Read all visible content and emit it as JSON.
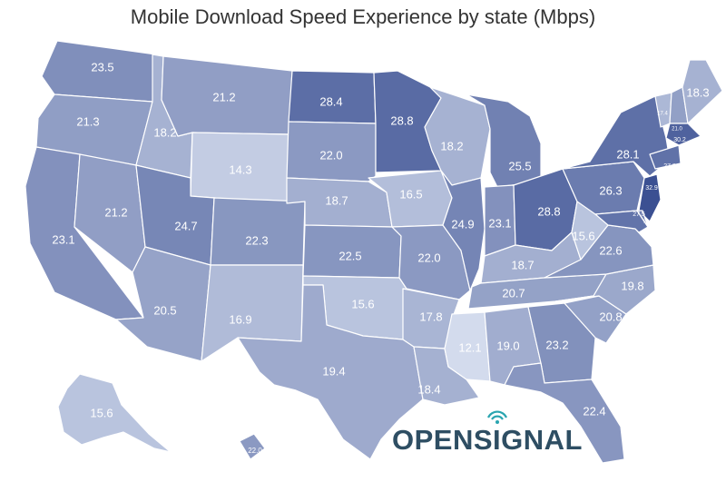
{
  "title": "Mobile Download Speed Experience by state (Mbps)",
  "logo": {
    "before": "OPENS",
    "i_letter": "I",
    "after": "GNAL"
  },
  "colors": {
    "scale_low": "#d3dbed",
    "scale_high": "#3b5092",
    "outline": "#ffffff",
    "label": "#ffffff",
    "logo": "#2e4e63",
    "logo_accent": "#2aa5b0"
  },
  "units": "Mbps",
  "states": [
    {
      "id": "WA",
      "value": "23.5"
    },
    {
      "id": "OR",
      "value": "21.3"
    },
    {
      "id": "CA",
      "value": "23.1"
    },
    {
      "id": "NV",
      "value": "21.2"
    },
    {
      "id": "ID",
      "value": "18.2"
    },
    {
      "id": "MT",
      "value": "21.2"
    },
    {
      "id": "WY",
      "value": "14.3"
    },
    {
      "id": "UT",
      "value": "24.7"
    },
    {
      "id": "AZ",
      "value": "20.5"
    },
    {
      "id": "CO",
      "value": "22.3"
    },
    {
      "id": "NM",
      "value": "16.9"
    },
    {
      "id": "ND",
      "value": "28.4"
    },
    {
      "id": "SD",
      "value": "22.0"
    },
    {
      "id": "NE",
      "value": "18.7"
    },
    {
      "id": "KS",
      "value": "22.5"
    },
    {
      "id": "OK",
      "value": "15.6"
    },
    {
      "id": "TX",
      "value": "19.4"
    },
    {
      "id": "MN",
      "value": "28.8"
    },
    {
      "id": "IA",
      "value": "16.5"
    },
    {
      "id": "MO",
      "value": "22.0"
    },
    {
      "id": "AR",
      "value": "17.8"
    },
    {
      "id": "LA",
      "value": "18.4"
    },
    {
      "id": "WI",
      "value": "18.2"
    },
    {
      "id": "IL",
      "value": "24.9"
    },
    {
      "id": "MI",
      "value": "25.5"
    },
    {
      "id": "IN",
      "value": "23.1"
    },
    {
      "id": "OH",
      "value": "28.8"
    },
    {
      "id": "KY",
      "value": "18.7"
    },
    {
      "id": "TN",
      "value": "20.7"
    },
    {
      "id": "MS",
      "value": "12.1"
    },
    {
      "id": "AL",
      "value": "19.0"
    },
    {
      "id": "GA",
      "value": "23.2"
    },
    {
      "id": "FL",
      "value": "22.4"
    },
    {
      "id": "SC",
      "value": "20.8"
    },
    {
      "id": "NC",
      "value": "19.8"
    },
    {
      "id": "VA",
      "value": "22.6"
    },
    {
      "id": "WV",
      "value": "15.6"
    },
    {
      "id": "PA",
      "value": "26.3"
    },
    {
      "id": "NY",
      "value": "28.1"
    },
    {
      "id": "VT",
      "value": "17.4"
    },
    {
      "id": "NH",
      "value": "21.0"
    },
    {
      "id": "ME",
      "value": "18.3"
    },
    {
      "id": "MA",
      "value": "30.2"
    },
    {
      "id": "CT",
      "value": "27.8"
    },
    {
      "id": "NJ",
      "value": "32.9"
    },
    {
      "id": "MD",
      "value": "27.5"
    },
    {
      "id": "DE",
      "value": "26.1"
    },
    {
      "id": "AK",
      "value": "15.6"
    },
    {
      "id": "HI",
      "value": "22.0"
    }
  ]
}
